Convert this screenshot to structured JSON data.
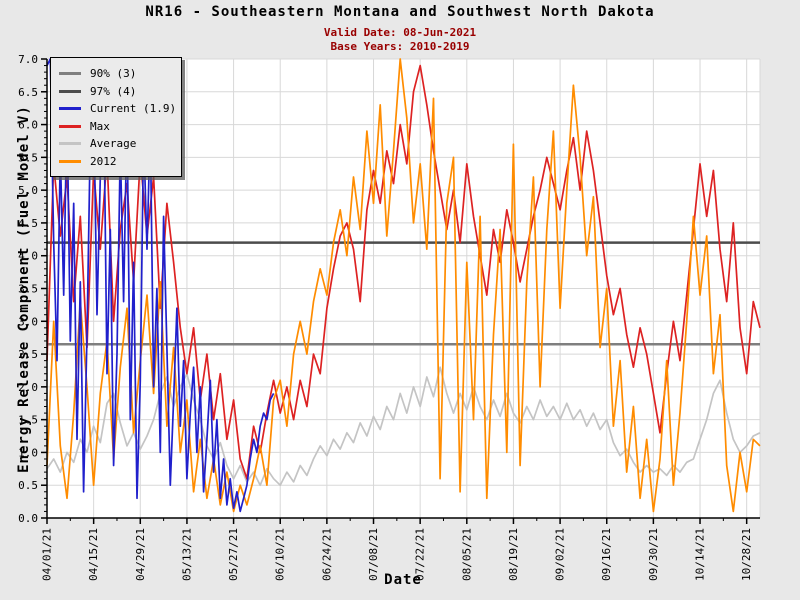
{
  "header": {
    "title": "NR16 - Southeastern Montana and Southwest North Dakota",
    "valid_date": "Valid Date: 08-Jun-2021",
    "base_years": "Base Years: 2010-2019"
  },
  "colors": {
    "background": "#e8e8e8",
    "plot_background": "#ffffff",
    "gridline": "#d8d8d8",
    "axis": "#000000",
    "subtitle_text": "#990000",
    "legend_background": "#ebebeb",
    "percentile_90": "#7f7f7f",
    "percentile_97": "#4c4c4c",
    "current_blue": "#2020cc",
    "max_red": "#dd2222",
    "average_gray": "#c4c4c4",
    "year2012_orange": "#ff8c00"
  },
  "legend": {
    "items": [
      {
        "label": "90% (3)",
        "color": "#7f7f7f"
      },
      {
        "label": "97% (4)",
        "color": "#4c4c4c"
      },
      {
        "label": "Current (1.9)",
        "color": "#2020cc"
      },
      {
        "label": "Max",
        "color": "#dd2222"
      },
      {
        "label": "Average",
        "color": "#c4c4c4"
      },
      {
        "label": "2012",
        "color": "#ff8c00"
      }
    ]
  },
  "chart_data": {
    "type": "line",
    "title": "NR16 - Southeastern Montana and Southwest North Dakota",
    "xlabel": "Date",
    "ylabel": "Energy Release Component (Fuel Model V)",
    "ylim": [
      0,
      7
    ],
    "y_tick_step": 0.5,
    "y_tick_labels": [
      "7.0",
      "6.5",
      "6.0",
      "5.5",
      "5.0",
      "4.5",
      "4.0",
      "3.5",
      "3.0",
      "2.5",
      "2.0",
      "1.5",
      "1.0",
      "0.5",
      "0.0"
    ],
    "x_tick_labels": [
      "04/01/21",
      "04/15/21",
      "04/29/21",
      "05/13/21",
      "05/27/21",
      "06/10/21",
      "06/24/21",
      "07/08/21",
      "07/22/21",
      "08/05/21",
      "08/19/21",
      "09/02/21",
      "09/16/21",
      "09/30/21",
      "10/14/21",
      "10/28/21"
    ],
    "x_tick_days": [
      0,
      14,
      28,
      42,
      56,
      70,
      84,
      98,
      112,
      126,
      140,
      154,
      168,
      182,
      196,
      210
    ],
    "x_domain_days": [
      0,
      214
    ],
    "grid": true,
    "legend_position": "top-left",
    "reference_lines": [
      {
        "name": "97% (4)",
        "value": 4.2,
        "color": "#4c4c4c"
      },
      {
        "name": "90% (3)",
        "value": 2.65,
        "color": "#7f7f7f"
      }
    ],
    "series": [
      {
        "name": "Average",
        "color": "#c4c4c4",
        "x_start": 0,
        "x_step": 2,
        "values": [
          0.75,
          0.9,
          0.7,
          1.0,
          0.85,
          1.2,
          1.0,
          1.4,
          1.15,
          1.75,
          1.9,
          1.45,
          1.1,
          1.3,
          1.05,
          1.25,
          1.5,
          1.9,
          2.15,
          1.7,
          2.0,
          2.2,
          1.8,
          1.5,
          1.1,
          0.9,
          1.15,
          0.8,
          0.6,
          0.8,
          0.55,
          0.7,
          0.5,
          0.75,
          0.6,
          0.5,
          0.7,
          0.55,
          0.8,
          0.65,
          0.9,
          1.1,
          0.95,
          1.2,
          1.05,
          1.3,
          1.15,
          1.45,
          1.25,
          1.55,
          1.35,
          1.7,
          1.5,
          1.9,
          1.6,
          2.0,
          1.7,
          2.15,
          1.85,
          2.3,
          1.9,
          1.6,
          1.9,
          1.65,
          2.0,
          1.7,
          1.5,
          1.8,
          1.55,
          1.9,
          1.6,
          1.45,
          1.7,
          1.5,
          1.8,
          1.55,
          1.7,
          1.5,
          1.75,
          1.5,
          1.65,
          1.4,
          1.6,
          1.35,
          1.5,
          1.15,
          0.95,
          1.05,
          0.85,
          0.7,
          0.8,
          0.7,
          0.75,
          0.65,
          0.8,
          0.7,
          0.85,
          0.9,
          1.2,
          1.5,
          1.9,
          2.1,
          1.6,
          1.2,
          1.0,
          1.1,
          1.25,
          1.3
        ]
      },
      {
        "name": "Max",
        "color": "#dd2222",
        "x_start": 0,
        "x_step": 2,
        "values": [
          2.4,
          5.4,
          4.3,
          5.2,
          3.3,
          4.6,
          2.6,
          5.3,
          4.1,
          5.5,
          3.0,
          4.4,
          5.1,
          3.6,
          5.5,
          4.3,
          5.2,
          3.2,
          4.8,
          3.9,
          2.9,
          2.2,
          2.9,
          1.8,
          2.5,
          1.5,
          2.2,
          1.2,
          1.8,
          0.9,
          0.6,
          1.4,
          1.0,
          1.6,
          2.1,
          1.6,
          2.0,
          1.5,
          2.1,
          1.7,
          2.5,
          2.2,
          3.2,
          3.8,
          4.3,
          4.5,
          4.1,
          3.3,
          4.7,
          5.3,
          4.8,
          5.6,
          5.1,
          6.0,
          5.4,
          6.5,
          6.9,
          6.3,
          5.6,
          5.0,
          4.4,
          5.0,
          4.2,
          5.4,
          4.6,
          4.0,
          3.4,
          4.4,
          3.9,
          4.7,
          4.2,
          3.6,
          4.1,
          4.6,
          5.0,
          5.5,
          5.1,
          4.7,
          5.3,
          5.8,
          5.0,
          5.9,
          5.3,
          4.5,
          3.7,
          3.1,
          3.5,
          2.8,
          2.3,
          2.9,
          2.5,
          1.9,
          1.3,
          2.2,
          3.0,
          2.4,
          3.4,
          4.4,
          5.4,
          4.6,
          5.3,
          4.1,
          3.3,
          4.5,
          2.9,
          2.2,
          3.3,
          2.9
        ]
      },
      {
        "name": "2012",
        "color": "#ff8c00",
        "x_start": 0,
        "x_step": 2,
        "values": [
          0.8,
          3.0,
          1.1,
          0.3,
          1.6,
          3.3,
          2.0,
          0.5,
          1.9,
          2.7,
          0.9,
          2.3,
          3.2,
          1.3,
          2.4,
          3.4,
          1.9,
          3.6,
          1.4,
          2.6,
          1.0,
          1.8,
          0.4,
          1.2,
          0.3,
          0.9,
          0.2,
          0.7,
          0.1,
          0.5,
          0.2,
          0.6,
          1.1,
          0.5,
          1.8,
          2.1,
          1.4,
          2.5,
          3.0,
          2.5,
          3.3,
          3.8,
          3.4,
          4.2,
          4.7,
          4.0,
          5.2,
          4.4,
          5.9,
          4.8,
          6.3,
          4.3,
          5.6,
          7.0,
          6.1,
          4.5,
          5.4,
          4.1,
          6.4,
          0.6,
          4.8,
          5.5,
          0.4,
          3.9,
          1.5,
          4.6,
          0.3,
          2.8,
          4.4,
          1.0,
          5.7,
          0.8,
          3.6,
          5.2,
          2.0,
          4.4,
          5.9,
          3.2,
          5.0,
          6.6,
          5.5,
          4.0,
          4.9,
          2.6,
          3.5,
          1.4,
          2.4,
          0.7,
          1.7,
          0.3,
          1.2,
          0.1,
          0.9,
          2.4,
          0.5,
          1.6,
          3.0,
          4.6,
          3.4,
          4.3,
          2.2,
          3.1,
          0.8,
          0.1,
          1.0,
          0.4,
          1.2,
          1.1
        ]
      },
      {
        "name": "Current (1.9)",
        "color": "#2020cc",
        "x_start": 0,
        "x_step": 1,
        "values": [
          6.9,
          7.0,
          4.2,
          2.4,
          5.6,
          3.4,
          6.3,
          2.7,
          4.8,
          1.2,
          3.6,
          0.4,
          2.8,
          5.8,
          6.4,
          3.1,
          5.2,
          6.6,
          2.2,
          4.4,
          0.8,
          2.5,
          5.7,
          3.3,
          6.2,
          1.5,
          3.9,
          0.3,
          2.1,
          5.9,
          4.1,
          6.0,
          2.0,
          3.5,
          1.0,
          4.6,
          2.6,
          0.5,
          1.8,
          3.2,
          1.4,
          2.4,
          0.6,
          1.6,
          2.3,
          1.0,
          2.0,
          0.4,
          1.2,
          2.1,
          0.7,
          1.5,
          0.3,
          0.9,
          0.2,
          0.6,
          0.15,
          0.4,
          0.1,
          0.3,
          0.5,
          0.9,
          1.2,
          1.0,
          1.4,
          1.6,
          1.5,
          1.8,
          1.9
        ]
      }
    ]
  }
}
